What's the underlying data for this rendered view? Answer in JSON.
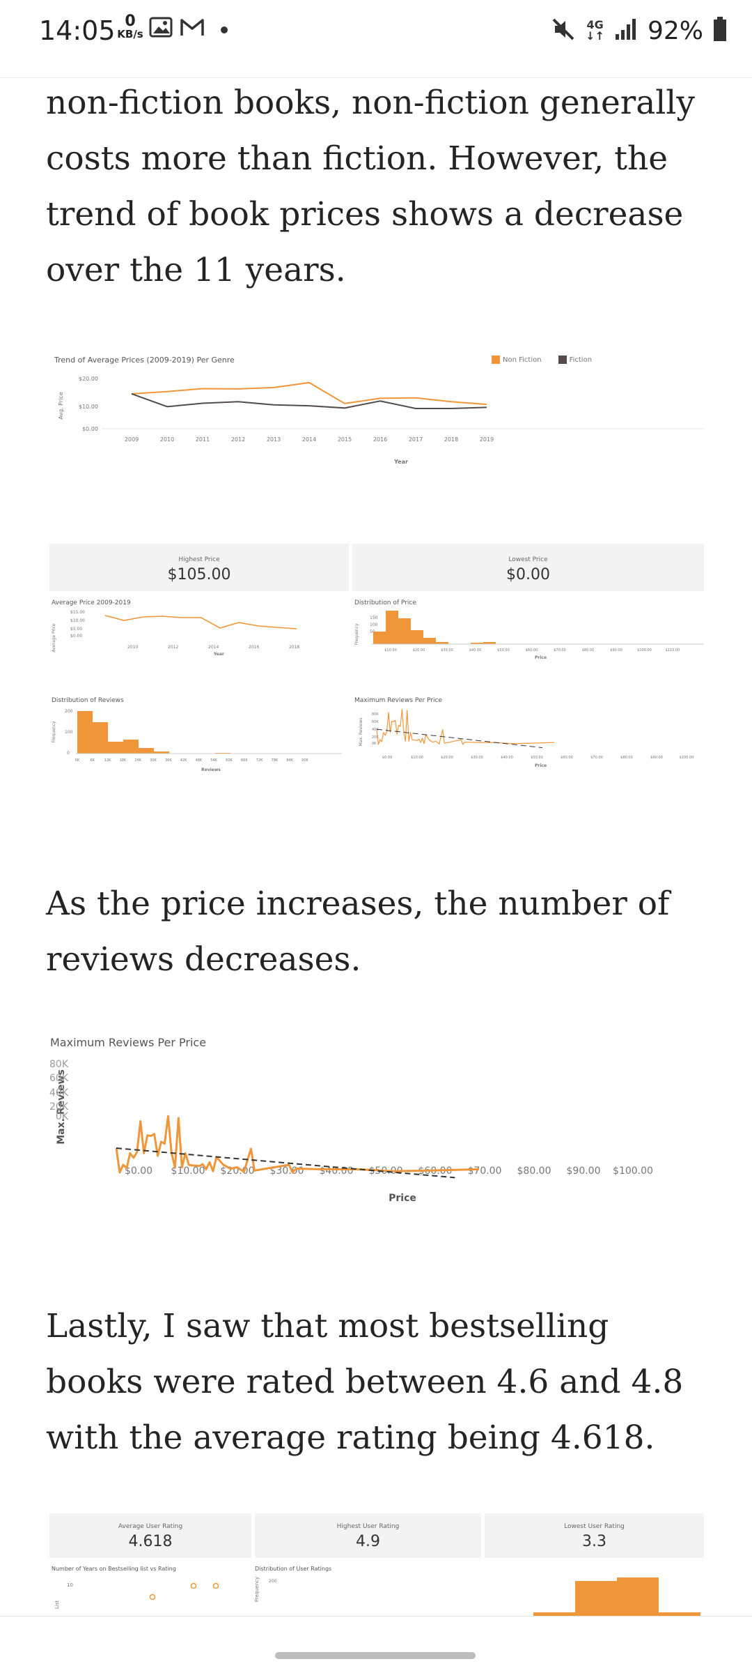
{
  "status_bar": {
    "time": "14:05",
    "net_speed_value": "0",
    "net_speed_unit": "KB/s",
    "network": "4G",
    "battery": "92%"
  },
  "paragraphs": {
    "p1": "non-fiction books, non-fiction generally costs more than fiction. However, the trend of book prices shows a decrease over the 11 years.",
    "p2": "As the price increases, the number of reviews decreases.",
    "p3": "Lastly, I saw that most bestselling books were rated between 4.6 and 4.8 with the average rating being 4.618."
  },
  "figure1": {
    "title": "Trend of Average Prices (2009-2019) Per Genre",
    "ylabel": "Avg. Price",
    "xlabel": "Year",
    "legend": [
      "Non Fiction",
      "Fiction"
    ],
    "y_ticks": [
      "$20.00",
      "$10.00",
      "$0.00"
    ],
    "colors": {
      "non_fiction": "#f0963a",
      "fiction": "#534b4b"
    }
  },
  "dashboard1": {
    "kpis": [
      {
        "label": "Highest Price",
        "value": "$105.00"
      },
      {
        "label": "Lowest Price",
        "value": "$0.00"
      }
    ],
    "avg_price": {
      "title": "Average Price 2009-2019",
      "ylabel": "Average Price",
      "xlabel": "Year",
      "y_ticks": [
        "$15.00",
        "$10.00",
        "$5.00",
        "$0.00"
      ],
      "x_ticks": [
        "2010",
        "2012",
        "2014",
        "2016",
        "2018"
      ]
    },
    "dist_price": {
      "title": "Distribution of Price",
      "ylabel": "Frequency",
      "xlabel": "Price",
      "y_ticks": [
        "150",
        "100",
        "50"
      ],
      "x_ticks": [
        "$10.00",
        "$20.00",
        "$30.00",
        "$40.00",
        "$50.00",
        "$60.00",
        "$70.00",
        "$80.00",
        "$90.00",
        "$100.00",
        "$110.00"
      ]
    },
    "dist_reviews": {
      "title": "Distribution of Reviews",
      "ylabel": "Frequency",
      "xlabel": "Reviews",
      "y_ticks": [
        "200",
        "100",
        "0"
      ],
      "x_ticks": [
        "0K",
        "6K",
        "12K",
        "18K",
        "24K",
        "30K",
        "36K",
        "42K",
        "48K",
        "54K",
        "60K",
        "66K",
        "72K",
        "78K",
        "84K",
        "90K"
      ]
    },
    "max_reviews_small": {
      "title": "Maximum Reviews Per Price",
      "ylabel": "Max. Reviews",
      "xlabel": "Price",
      "y_ticks": [
        "80K",
        "60K",
        "40K",
        "20K",
        "0K"
      ],
      "x_ticks": [
        "$0.00",
        "$10.00",
        "$20.00",
        "$30.00",
        "$40.00",
        "$50.00",
        "$60.00",
        "$70.00",
        "$80.00",
        "$90.00",
        "$100.00"
      ]
    }
  },
  "figure2": {
    "title": "Maximum Reviews Per Price",
    "ylabel": "Max. Reviews",
    "xlabel": "Price",
    "y_ticks": [
      "80K",
      "60K",
      "40K",
      "20K",
      "0K"
    ],
    "x_ticks": [
      "$0.00",
      "$10.00",
      "$20.00",
      "$30.00",
      "$40.00",
      "$50.00",
      "$60.00",
      "$70.00",
      "$80.00",
      "$90.00",
      "$100.00"
    ]
  },
  "dashboard2": {
    "kpis": [
      {
        "label": "Average User Rating",
        "value": "4.618"
      },
      {
        "label": "Highest User Rating",
        "value": "4.9"
      },
      {
        "label": "Lowest User Rating",
        "value": "3.3"
      }
    ],
    "years_vs_rating": {
      "title": "Number of Years on Bestselling list vs Rating",
      "y_tick": "10",
      "ylabel": "List"
    },
    "dist_rating": {
      "title": "Distribution of User Ratings",
      "y_tick": "200",
      "ylabel": "Frequency"
    }
  },
  "chart_data": [
    {
      "type": "line",
      "title": "Trend of Average Prices (2009-2019) Per Genre",
      "xlabel": "Year",
      "ylabel": "Avg. Price",
      "x": [
        2009,
        2010,
        2011,
        2012,
        2013,
        2014,
        2015,
        2016,
        2017,
        2018,
        2019
      ],
      "ylim": [
        0,
        20
      ],
      "series": [
        {
          "name": "Non Fiction",
          "values": [
            15.5,
            16.5,
            17.8,
            17.7,
            18.3,
            20.5,
            11.2,
            13.5,
            13.7,
            12,
            10.8
          ]
        },
        {
          "name": "Fiction",
          "values": [
            15.5,
            9.8,
            11.3,
            12,
            10.6,
            10.2,
            9.2,
            12.3,
            9,
            9,
            9.5
          ]
        }
      ]
    },
    {
      "type": "line",
      "title": "Maximum Reviews Per Price",
      "xlabel": "Price",
      "ylabel": "Max. Reviews",
      "xlim": [
        0,
        105
      ],
      "ylim": [
        0,
        87000
      ],
      "series": [
        {
          "values_xy": [
            [
              0,
              38000
            ],
            [
              1,
              0
            ],
            [
              2,
              12000
            ],
            [
              3,
              7000
            ],
            [
              4,
              30000
            ],
            [
              5,
              23000
            ],
            [
              6,
              32000
            ],
            [
              7,
              80000
            ],
            [
              8,
              30000
            ],
            [
              9,
              58000
            ],
            [
              10,
              57000
            ],
            [
              11,
              60000
            ],
            [
              12,
              26000
            ],
            [
              13,
              48000
            ],
            [
              14,
              45000
            ],
            [
              15,
              88000
            ],
            [
              16,
              30000
            ],
            [
              17,
              8000
            ],
            [
              18,
              85000
            ],
            [
              19,
              8000
            ],
            [
              20,
              30000
            ],
            [
              21,
              12000
            ],
            [
              22,
              11000
            ],
            [
              24,
              10000
            ],
            [
              25,
              13000
            ],
            [
              26,
              5000
            ],
            [
              27,
              16000
            ],
            [
              28,
              2000
            ],
            [
              29,
              24000
            ],
            [
              30,
              18000
            ],
            [
              31,
              12000
            ],
            [
              33,
              6000
            ],
            [
              35,
              8000
            ],
            [
              37,
              1000
            ],
            [
              38,
              20000
            ],
            [
              39,
              37000
            ],
            [
              40,
              3000
            ],
            [
              50,
              12000
            ],
            [
              51,
              0
            ],
            [
              52,
              6000
            ],
            [
              60,
              5000
            ],
            [
              70,
              5000
            ],
            [
              80,
              2000
            ],
            [
              90,
              3000
            ],
            [
              105,
              5000
            ]
          ]
        }
      ],
      "trend_line": [
        [
          0,
          38000
        ],
        [
          98,
          -8000
        ]
      ]
    }
  ]
}
